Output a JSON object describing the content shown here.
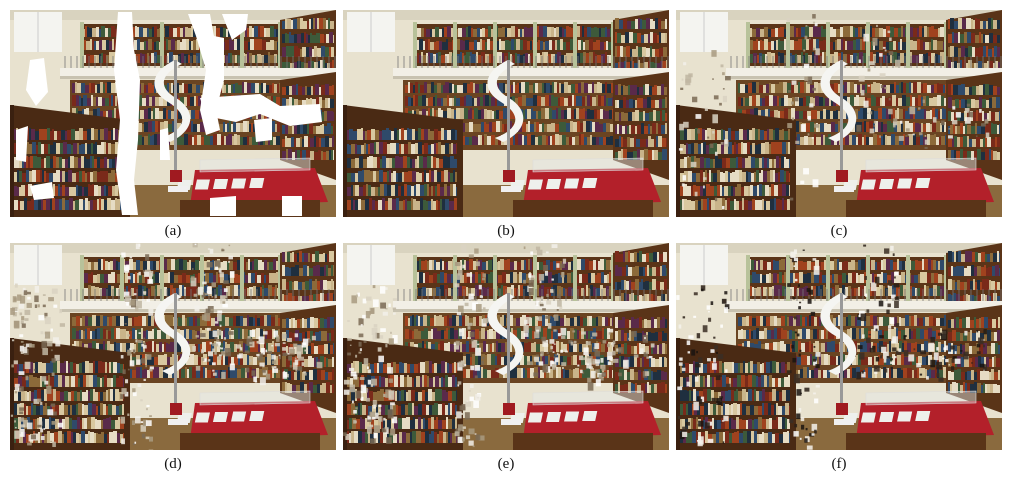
{
  "panels": [
    {
      "id": "a",
      "caption": "(a)",
      "variant": "masked"
    },
    {
      "id": "b",
      "caption": "(b)",
      "variant": "clean"
    },
    {
      "id": "c",
      "caption": "(c)",
      "variant": "light-artifacts"
    },
    {
      "id": "d",
      "caption": "(d)",
      "variant": "heavy-artifacts"
    },
    {
      "id": "e",
      "caption": "(e)",
      "variant": "heavy-artifacts"
    },
    {
      "id": "f",
      "caption": "(f)",
      "variant": "dark-artifacts"
    }
  ],
  "palette": {
    "wall": "#e8e2cf",
    "floor": "#8a6a3e",
    "wood": "#5a3418",
    "balcony": "#f2efe6",
    "table_red": "#b3202a",
    "stair": "#f5f5f2",
    "mask": "#ffffff"
  }
}
